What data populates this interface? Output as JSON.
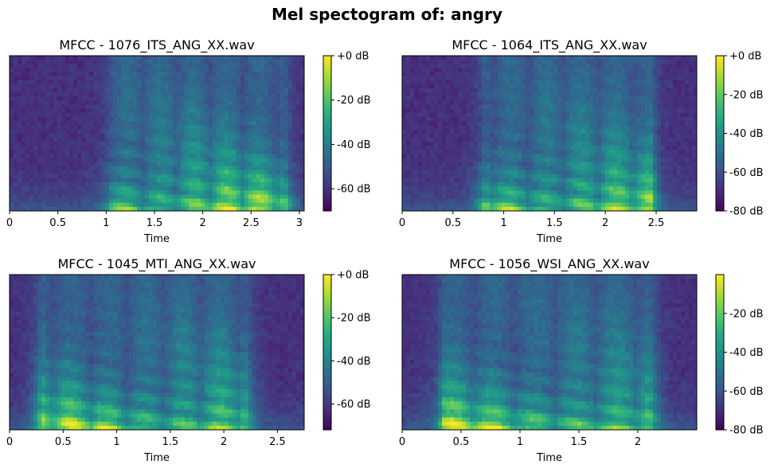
{
  "figure": {
    "suptitle": "Mel spectogram of: angry"
  },
  "chart_data": [
    {
      "type": "heatmap",
      "title": "MFCC - 1076_ITS_ANG_XX.wav",
      "xlabel": "Time",
      "ylabel": "",
      "xlim": [
        0,
        3.05
      ],
      "xticks": [
        0,
        0.5,
        1,
        1.5,
        2,
        2.5,
        3
      ],
      "xtick_labels": [
        "0",
        "0.5",
        "1",
        "1.5",
        "2",
        "2.5",
        "3"
      ],
      "colorbar": {
        "range": [
          -70,
          0
        ],
        "ticks": [
          0,
          -20,
          -40,
          -60
        ],
        "tick_labels": [
          "+0 dB",
          "-20 dB",
          "-40 dB",
          "-60 dB"
        ]
      },
      "active_segments": [
        [
          1.05,
          2.85
        ]
      ],
      "colormap": "viridis"
    },
    {
      "type": "heatmap",
      "title": "MFCC - 1064_ITS_ANG_XX.wav",
      "xlabel": "Time",
      "ylabel": "",
      "xlim": [
        0,
        2.9
      ],
      "xticks": [
        0,
        0.5,
        1,
        1.5,
        2,
        2.5
      ],
      "xtick_labels": [
        "0",
        "0.5",
        "1",
        "1.5",
        "2",
        "2.5"
      ],
      "colorbar": {
        "range": [
          -80,
          0
        ],
        "ticks": [
          0,
          -20,
          -40,
          -60,
          -80
        ],
        "tick_labels": [
          "+0 dB",
          "-20 dB",
          "-40 dB",
          "-60 dB",
          "-80 dB"
        ]
      },
      "active_segments": [
        [
          0.82,
          2.45
        ]
      ],
      "colormap": "viridis"
    },
    {
      "type": "heatmap",
      "title": "MFCC - 1045_MTI_ANG_XX.wav",
      "xlabel": "Time",
      "ylabel": "",
      "xlim": [
        0,
        2.75
      ],
      "xticks": [
        0,
        0.5,
        1,
        1.5,
        2,
        2.5
      ],
      "xtick_labels": [
        "0",
        "0.5",
        "1",
        "1.5",
        "2",
        "2.5"
      ],
      "colorbar": {
        "range": [
          -72,
          0
        ],
        "ticks": [
          0,
          -20,
          -40,
          -60
        ],
        "tick_labels": [
          "+0 dB",
          "-20 dB",
          "-40 dB",
          "-60 dB"
        ]
      },
      "active_segments": [
        [
          0.3,
          2.2
        ]
      ],
      "colormap": "viridis"
    },
    {
      "type": "heatmap",
      "title": "MFCC - 1056_WSI_ANG_XX.wav",
      "xlabel": "Time",
      "ylabel": "",
      "xlim": [
        0,
        2.5
      ],
      "xticks": [
        0,
        0.5,
        1,
        1.5,
        2
      ],
      "xtick_labels": [
        "0",
        "0.5",
        "1",
        "1.5",
        "2"
      ],
      "colorbar": {
        "range": [
          -80,
          0
        ],
        "ticks": [
          -20,
          -40,
          -60,
          -80
        ],
        "tick_labels": [
          "-20 dB",
          "-40 dB",
          "-60 dB",
          "-80 dB"
        ]
      },
      "active_segments": [
        [
          0.35,
          2.1
        ]
      ],
      "colormap": "viridis"
    }
  ]
}
